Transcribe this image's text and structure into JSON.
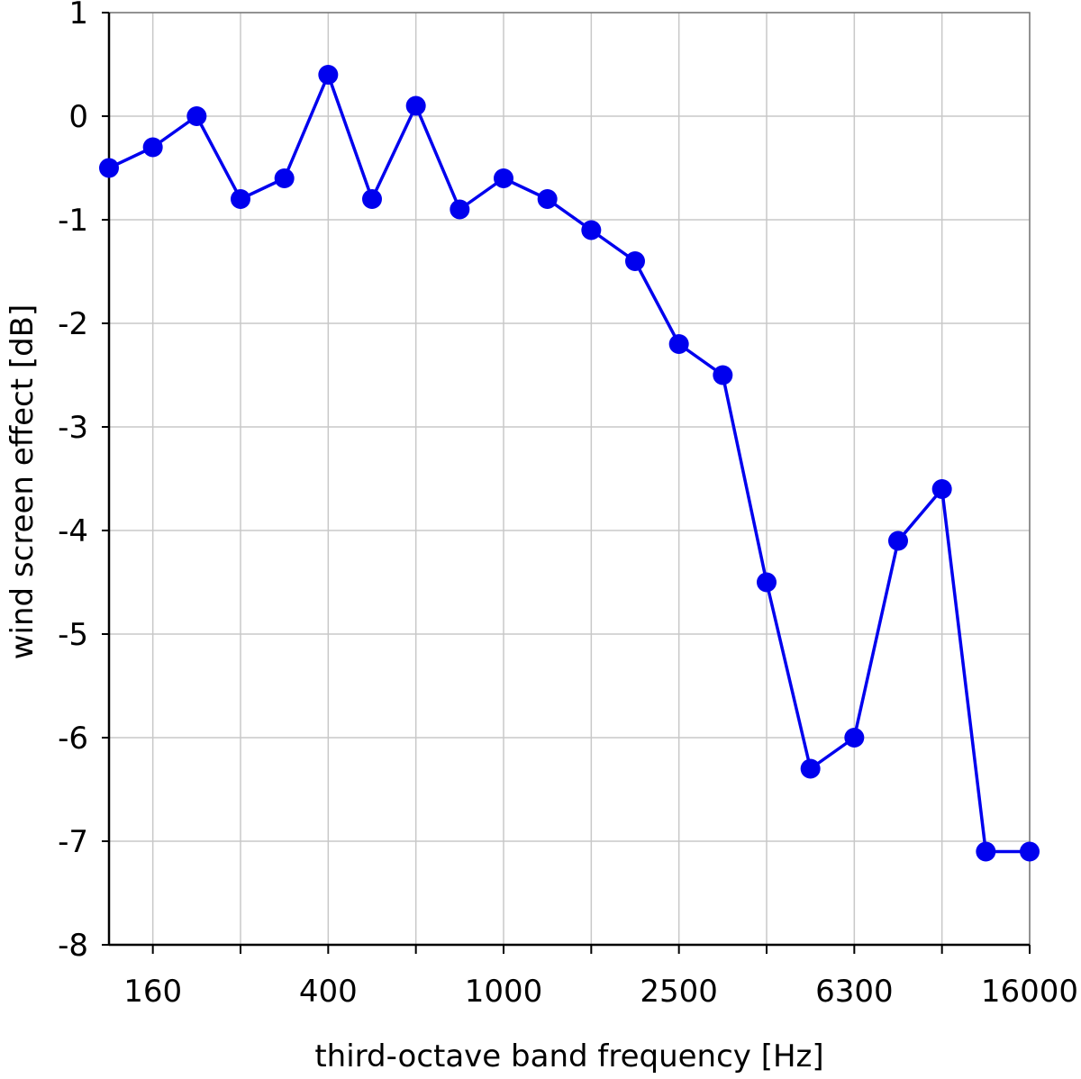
{
  "chart_data": {
    "type": "line",
    "xlabel": "third-octave band frequency [Hz]",
    "ylabel": "wind screen effect [dB]",
    "ylim": [
      -8,
      1
    ],
    "yticks": [
      1,
      0,
      -1,
      -2,
      -3,
      -4,
      -5,
      -6,
      -7,
      -8
    ],
    "x_scale": "log (third-octave bands)",
    "x_tick_labels": [
      "160",
      "400",
      "1000",
      "2500",
      "6300",
      "16000"
    ],
    "grid": true,
    "legend": "none",
    "series_color": "#0000ee",
    "series": [
      {
        "x": [
          125,
          160,
          200,
          250,
          315,
          400,
          500,
          630,
          800,
          1000,
          1250,
          1600,
          2000,
          2500,
          3150,
          4000,
          5000,
          6300,
          8000,
          10000,
          12500,
          16000
        ],
        "values": [
          -0.5,
          -0.3,
          0.0,
          -0.8,
          -0.6,
          0.4,
          -0.8,
          0.1,
          -0.9,
          -0.6,
          -0.8,
          -1.1,
          -1.4,
          -2.2,
          -2.5,
          -4.5,
          -6.3,
          -6.0,
          -4.1,
          -3.6,
          -7.1,
          -7.1
        ]
      }
    ]
  }
}
